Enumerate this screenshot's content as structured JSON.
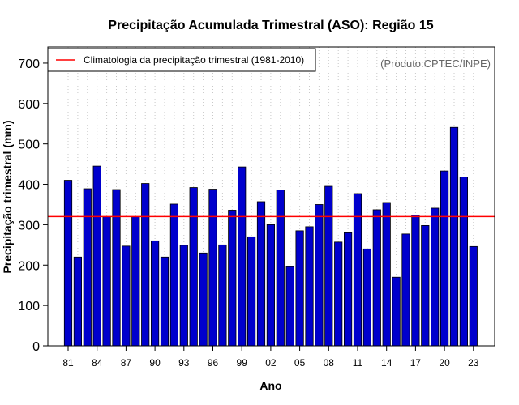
{
  "chart_data": {
    "type": "bar",
    "title": "Precipitação Acumulada Trimestral (ASO): Região 15",
    "xlabel": "Ano",
    "ylabel": "Precipitação trimestral (mm)",
    "ylim": [
      0,
      740
    ],
    "yticks": [
      0,
      100,
      200,
      300,
      400,
      500,
      600,
      700
    ],
    "xtick_labels": [
      "81",
      "84",
      "87",
      "90",
      "93",
      "96",
      "99",
      "02",
      "05",
      "08",
      "11",
      "14",
      "17",
      "20",
      "23"
    ],
    "xtick_indices": [
      0,
      3,
      6,
      9,
      12,
      15,
      18,
      21,
      24,
      27,
      30,
      33,
      36,
      39,
      42
    ],
    "categories": [
      "1981",
      "1982",
      "1983",
      "1984",
      "1985",
      "1986",
      "1987",
      "1988",
      "1989",
      "1990",
      "1991",
      "1992",
      "1993",
      "1994",
      "1995",
      "1996",
      "1997",
      "1998",
      "1999",
      "2000",
      "2001",
      "2002",
      "2003",
      "2004",
      "2005",
      "2006",
      "2007",
      "2008",
      "2009",
      "2010",
      "2011",
      "2012",
      "2013",
      "2014",
      "2015",
      "2016",
      "2017",
      "2018",
      "2019",
      "2020",
      "2021",
      "2022",
      "2023"
    ],
    "values": [
      410,
      220,
      389,
      445,
      320,
      387,
      247,
      320,
      402,
      260,
      220,
      351,
      249,
      392,
      230,
      388,
      250,
      336,
      443,
      270,
      357,
      300,
      386,
      196,
      285,
      295,
      350,
      395,
      257,
      280,
      377,
      240,
      337,
      355,
      170,
      277,
      324,
      298,
      341,
      433,
      541,
      418,
      246
    ],
    "climatology": 320,
    "grid": "vertical dotted",
    "legend": {
      "position": "top-left",
      "entries": [
        "Climatologia da precipitação trimestral (1981-2010)"
      ]
    },
    "annotation": "(Produto:CPTEC/INPE)",
    "colors": {
      "bar": "#0000cd",
      "climatology": "#ff0000",
      "grid": "#c8c8c8",
      "credit": "#666666"
    }
  }
}
